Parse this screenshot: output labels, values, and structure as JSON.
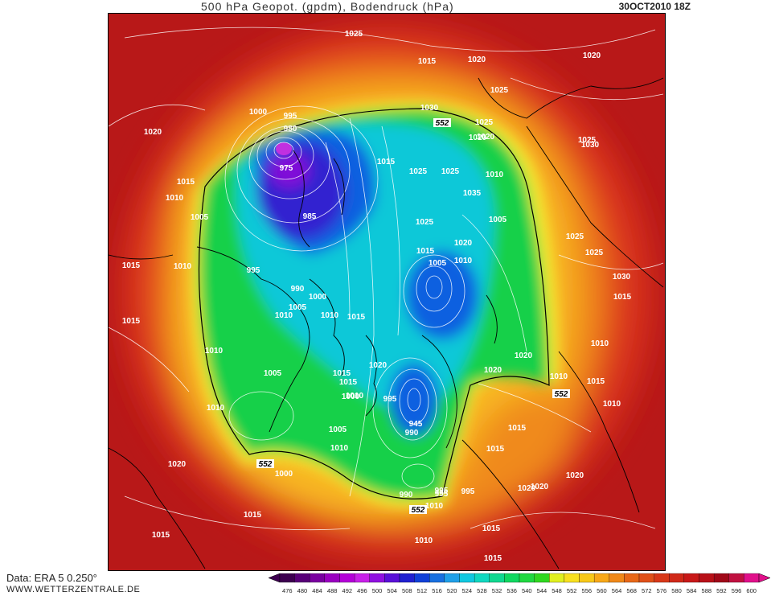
{
  "header": {
    "title": "500 hPa Geopot. (gpdm), Bodendruck (hPa)",
    "datetime": "30OCT2010 18Z"
  },
  "footer": {
    "data_source": "Data: ERA 5 0.250°",
    "website": "WWW.WETTERZENTRALE.DE"
  },
  "colorbar": {
    "labels": [
      "476",
      "480",
      "484",
      "488",
      "492",
      "496",
      "500",
      "504",
      "508",
      "512",
      "516",
      "520",
      "524",
      "528",
      "532",
      "536",
      "540",
      "544",
      "548",
      "552",
      "556",
      "560",
      "564",
      "568",
      "572",
      "576",
      "580",
      "584",
      "588",
      "592",
      "596",
      "600"
    ],
    "colors": [
      "#3d0050",
      "#580078",
      "#7a00a0",
      "#9a00c0",
      "#b400d8",
      "#c820e8",
      "#9010e0",
      "#5a10d8",
      "#2020d0",
      "#1040d8",
      "#1870e0",
      "#20a0e8",
      "#10c8e0",
      "#10d8c0",
      "#10d890",
      "#10d860",
      "#20d840",
      "#30d820",
      "#e0f020",
      "#f8e020",
      "#f8c818",
      "#f8a818",
      "#f08818",
      "#e86818",
      "#e05018",
      "#d83818",
      "#d02818",
      "#c81818",
      "#b81018",
      "#a00818",
      "#c01040",
      "#e0108a"
    ]
  },
  "map": {
    "colors": {
      "deep_red": "#b81818",
      "red": "#d8301c",
      "orange_red": "#e8581c",
      "orange": "#f08a1e",
      "yellow_orange": "#f8b820",
      "yellow": "#f4ec30",
      "green": "#18d048",
      "cyan": "#10c8d8",
      "blue": "#1060e0",
      "deep_blue": "#3020d0",
      "violet": "#8010d8",
      "magenta": "#c030e0"
    },
    "pressure_labels": [
      "1025",
      "1015",
      "1020",
      "1020",
      "1025",
      "1030",
      "552",
      "1025",
      "1020",
      "1000",
      "995",
      "980",
      "975",
      "1020",
      "1015",
      "1010",
      "1005",
      "1010",
      "1020",
      "1025",
      "1015",
      "1025",
      "1025",
      "985",
      "1005",
      "1025",
      "1035",
      "1030",
      "1020",
      "1015",
      "1005",
      "1010",
      "995",
      "990",
      "1000",
      "1005",
      "1010",
      "1010",
      "1015",
      "1015",
      "1025",
      "1010",
      "1025",
      "1030",
      "1015",
      "1015",
      "1010",
      "1005",
      "1020",
      "1015",
      "1015",
      "1010",
      "995",
      "1000",
      "1020",
      "1010",
      "552",
      "945",
      "990",
      "1005",
      "1010",
      "1015",
      "1020",
      "1020",
      "1015",
      "1010",
      "552",
      "995",
      "1000",
      "1010",
      "1020",
      "1015",
      "990",
      "995",
      "995",
      "552",
      "1010",
      "1015",
      "1015",
      "1010",
      "1015",
      "1020",
      "1020",
      "1015",
      "1010"
    ]
  }
}
